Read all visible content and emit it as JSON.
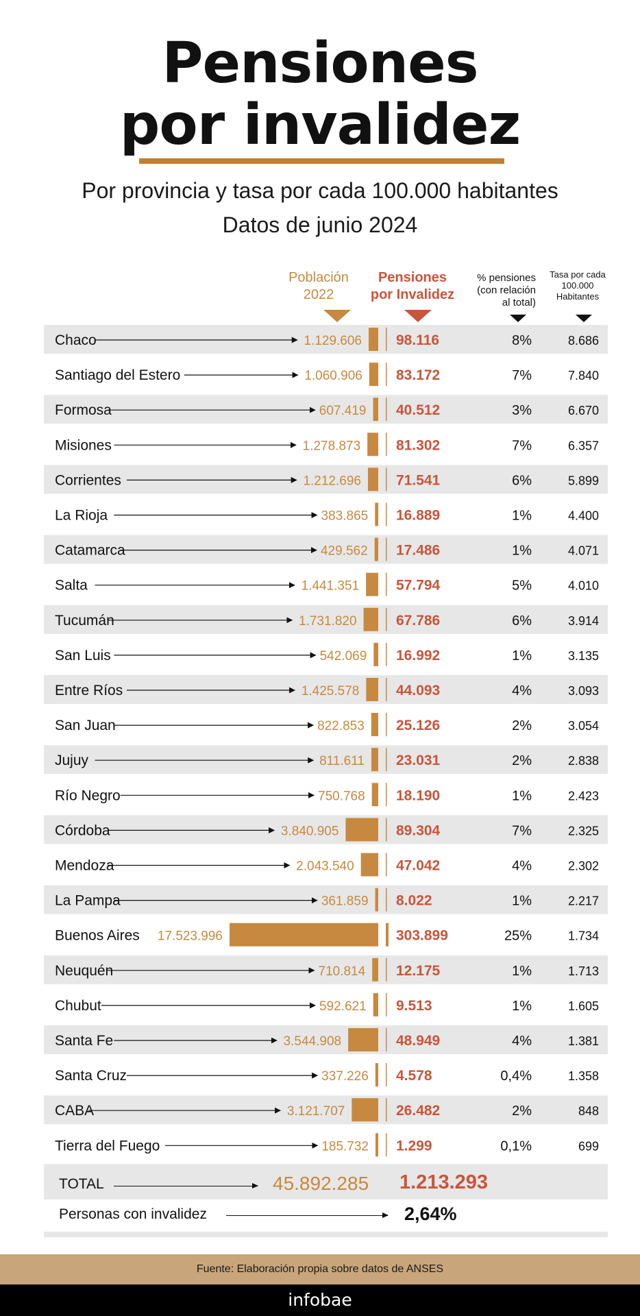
{
  "title": "Pensiones\npor invalidez",
  "subtitle": "Por provincia y tasa por cada 100.000 habitantes\nDatos de junio 2024",
  "headers": {
    "population": "Población\n2022",
    "pensions": "Pensiones\npor Invalidez",
    "percent": "% pensiones\n(con relación\nal total)",
    "rate": "Tasa por cada\n100.000\nHabitantes"
  },
  "colors": {
    "population": "#c7893f",
    "pensions": "#c9553a",
    "accent_rule": "#c17f34",
    "band": "#e7e7e7",
    "source_band": "#c9a57b",
    "footer": "#000000"
  },
  "chart_data": {
    "type": "bar",
    "title": "Pensiones por invalidez",
    "subtitle": "Por provincia y tasa por cada 100.000 habitantes",
    "categories": [
      "Chaco",
      "Santiago del Estero",
      "Formosa",
      "Misiones",
      "Corrientes",
      "La Rioja",
      "Catamarca",
      "Salta",
      "Tucumán",
      "San Luis",
      "Entre Ríos",
      "San Juan",
      "Jujuy",
      "Río Negro",
      "Córdoba",
      "Mendoza",
      "La Pampa",
      "Buenos Aires",
      "Neuquén",
      "Chubut",
      "Santa Fe",
      "Santa Cruz",
      "CABA",
      "Tierra del Fuego"
    ],
    "series": [
      {
        "name": "Población 2022",
        "values": [
          1129606,
          1060906,
          607419,
          1278873,
          1212696,
          383865,
          429562,
          1441351,
          1731820,
          542069,
          1425578,
          822853,
          811611,
          750768,
          3840905,
          2043540,
          361859,
          17523996,
          710814,
          592621,
          3544908,
          337226,
          3121707,
          185732
        ],
        "labels": [
          "1.129.606",
          "1.060.906",
          "607.419",
          "1.278.873",
          "1.212.696",
          "383.865",
          "429.562",
          "1.441.351",
          "1.731.820",
          "542.069",
          "1.425.578",
          "822.853",
          "811.611",
          "750.768",
          "3.840.905",
          "2.043.540",
          "361.859",
          "17.523.996",
          "710.814",
          "592.621",
          "3.544.908",
          "337.226",
          "3.121.707",
          "185.732"
        ]
      },
      {
        "name": "Pensiones por Invalidez",
        "values": [
          98116,
          83172,
          40512,
          81302,
          71541,
          16889,
          17486,
          57794,
          67786,
          16992,
          44093,
          25126,
          23031,
          18190,
          89304,
          47042,
          8022,
          303899,
          12175,
          9513,
          48949,
          4578,
          26482,
          1299
        ],
        "labels": [
          "98.116",
          "83.172",
          "40.512",
          "81.302",
          "71.541",
          "16.889",
          "17.486",
          "57.794",
          "67.786",
          "16.992",
          "44.093",
          "25.126",
          "23.031",
          "18.190",
          "89.304",
          "47.042",
          "8.022",
          "303.899",
          "12.175",
          "9.513",
          "48.949",
          "4.578",
          "26.482",
          "1.299"
        ]
      },
      {
        "name": "% pensiones (con relación al total)",
        "labels": [
          "8%",
          "7%",
          "3%",
          "7%",
          "6%",
          "1%",
          "1%",
          "5%",
          "6%",
          "1%",
          "4%",
          "2%",
          "2%",
          "1%",
          "7%",
          "4%",
          "1%",
          "25%",
          "1%",
          "1%",
          "4%",
          "0,4%",
          "2%",
          "0,1%"
        ]
      },
      {
        "name": "Tasa por cada 100.000 Habitantes",
        "values": [
          8686,
          7840,
          6670,
          6357,
          5899,
          4400,
          4071,
          4010,
          3914,
          3135,
          3093,
          3054,
          2838,
          2423,
          2325,
          2302,
          2217,
          1734,
          1713,
          1605,
          1381,
          1358,
          848,
          699
        ],
        "labels": [
          "8.686",
          "7.840",
          "6.670",
          "6.357",
          "5.899",
          "4.400",
          "4.071",
          "4.010",
          "3.914",
          "3.135",
          "3.093",
          "3.054",
          "2.838",
          "2.423",
          "2.325",
          "2.302",
          "2.217",
          "1.734",
          "1.713",
          "1.605",
          "1.381",
          "1.358",
          "848",
          "699"
        ]
      }
    ]
  },
  "total": {
    "label": "TOTAL",
    "population": "45.892.285",
    "pensions": "1.213.293"
  },
  "invalidity": {
    "label": "Personas con invalidez",
    "value": "2,64%"
  },
  "source": "Fuente: Elaboración propia sobre datos de ANSES",
  "footer_brand": "infobae"
}
